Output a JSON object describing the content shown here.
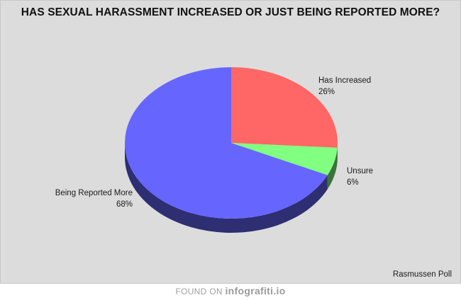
{
  "chart_data": {
    "type": "pie",
    "title": "HAS SEXUAL HARASSMENT INCREASED OR JUST BEING REPORTED MORE?",
    "style": "3d",
    "slices": [
      {
        "label": "Has Increased",
        "value": 26,
        "display": "26%",
        "color": "#ff6666"
      },
      {
        "label": "Unsure",
        "value": 6,
        "display": "6%",
        "color": "#80ff80"
      },
      {
        "label": "Being Reported More",
        "value": 68,
        "display": "68%",
        "color": "#6666ff"
      }
    ],
    "source": "Rasmussen Poll"
  },
  "footer": {
    "prefix": "FOUND ON",
    "brand": "infografiti.io"
  }
}
